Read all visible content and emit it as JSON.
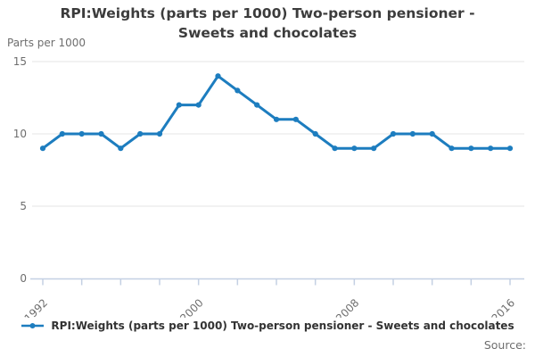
{
  "title": {
    "line1": "RPI:Weights (parts per 1000) Two-person pensioner -",
    "line2": "Sweets and chocolates"
  },
  "legend": {
    "items": [
      {
        "label": "RPI:Weights (parts per 1000) Two-person pensioner - Sweets and chocolates",
        "marker": "line-dot-icon"
      }
    ]
  },
  "source_label": "Source:",
  "colors": {
    "line": "#1d7dbf",
    "grid": "#e4e4e4",
    "axis": "#c4d0e3",
    "muted_text": "#6e6e6e",
    "title_text": "#3c3c3c",
    "legend_text": "#333333"
  },
  "chart_data": {
    "type": "line",
    "title": "RPI:Weights (parts per 1000) Two-person pensioner - Sweets and chocolates",
    "xlabel": "",
    "ylabel": "Parts per 1000",
    "x": [
      1992,
      1993,
      1994,
      1995,
      1996,
      1997,
      1998,
      1999,
      2000,
      2001,
      2002,
      2003,
      2004,
      2005,
      2006,
      2007,
      2008,
      2009,
      2010,
      2011,
      2012,
      2013,
      2014,
      2015,
      2016
    ],
    "series": [
      {
        "name": "RPI:Weights (parts per 1000) Two-person pensioner - Sweets and chocolates",
        "values": [
          9,
          10,
          10,
          10,
          9,
          10,
          10,
          12,
          12,
          14,
          13,
          12,
          11,
          11,
          10,
          9,
          9,
          9,
          10,
          10,
          10,
          9,
          9,
          9,
          9
        ]
      }
    ],
    "ylim": [
      0,
      15
    ],
    "yticks": [
      0,
      5,
      10,
      15
    ],
    "xticks_every": 2,
    "xtick_labels": [
      1992,
      2000,
      2008,
      2016
    ],
    "grid": true,
    "legend_position": "bottom",
    "marker": "circle"
  }
}
